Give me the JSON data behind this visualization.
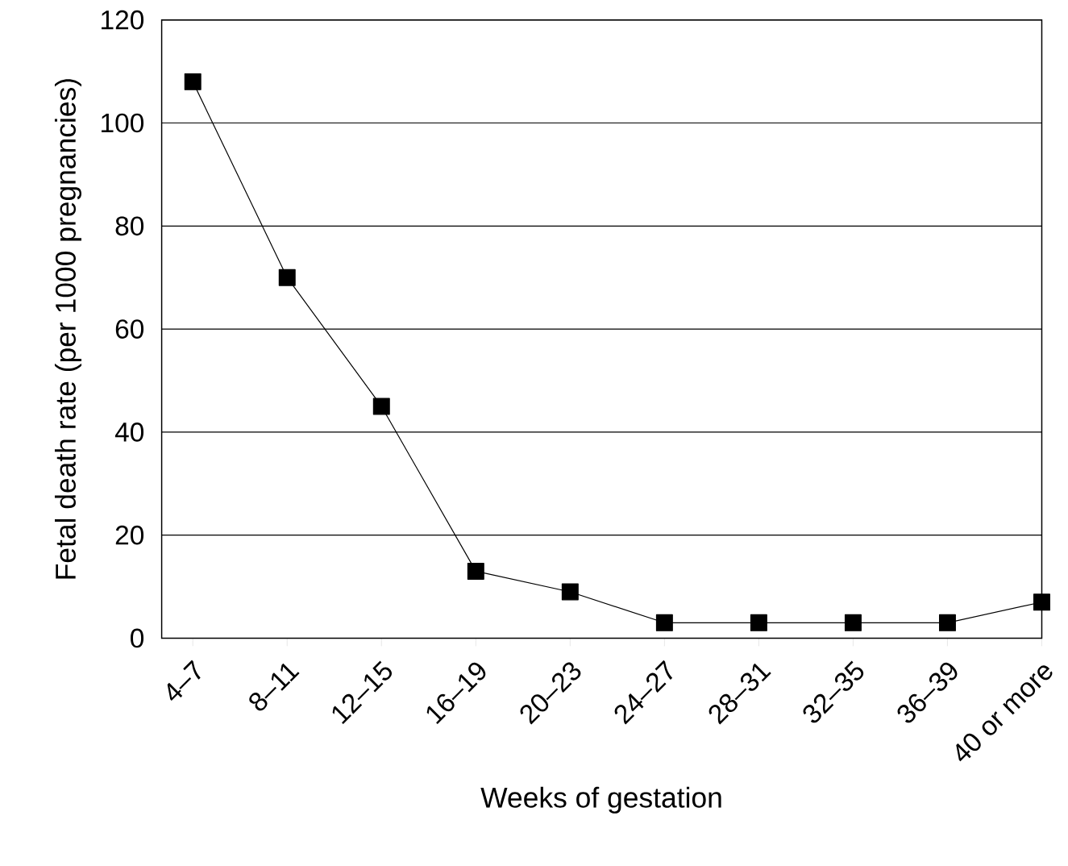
{
  "chart_data": {
    "type": "line",
    "xlabel": "Weeks of gestation",
    "ylabel": "Fetal death rate (per 1000 pregnancies)",
    "categories": [
      "4–7",
      "8–11",
      "12–15",
      "16–19",
      "20–23",
      "24–27",
      "28–31",
      "32–35",
      "36–39",
      "40 or more"
    ],
    "values": [
      108,
      70,
      45,
      13,
      9,
      3,
      3,
      3,
      3,
      7
    ],
    "color": "#000000",
    "marker": "square",
    "line_style": "solid",
    "ylim": [
      0,
      120
    ],
    "yticks": [
      0,
      20,
      40,
      60,
      80,
      100,
      120
    ],
    "grid": "y"
  }
}
